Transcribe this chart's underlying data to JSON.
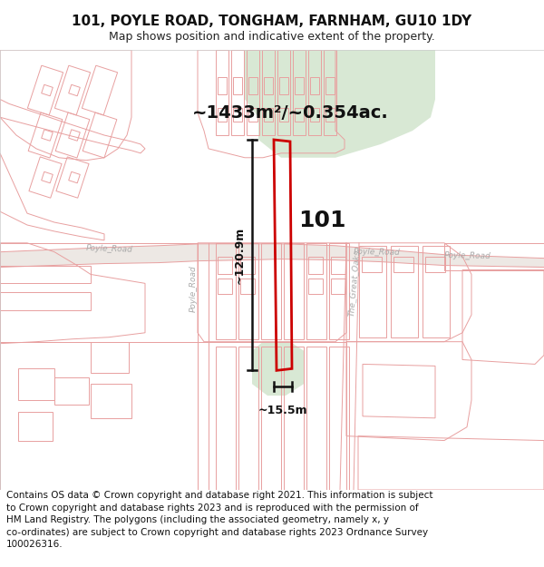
{
  "title": "101, POYLE ROAD, TONGHAM, FARNHAM, GU10 1DY",
  "subtitle": "Map shows position and indicative extent of the property.",
  "area_text": "~1433m²/~0.354ac.",
  "label_101": "101",
  "dim_height": "~120.9m",
  "dim_width": "~15.5m",
  "footer_lines": [
    "Contains OS data © Crown copyright and database right 2021. This information is subject",
    "to Crown copyright and database rights 2023 and is reproduced with the permission of",
    "HM Land Registry. The polygons (including the associated geometry, namely x, y",
    "co-ordinates) are subject to Crown copyright and database rights 2023 Ordnance Survey",
    "100026316."
  ],
  "bg_color": "#f5f0ee",
  "green_fill": "#d8e8d4",
  "red_line": "#cc0000",
  "pink_line": "#e8a0a0",
  "title_fontsize": 11,
  "subtitle_fontsize": 9,
  "footer_fontsize": 7.5,
  "area_fontsize": 14,
  "label_fontsize": 18,
  "dim_fontsize": 9
}
